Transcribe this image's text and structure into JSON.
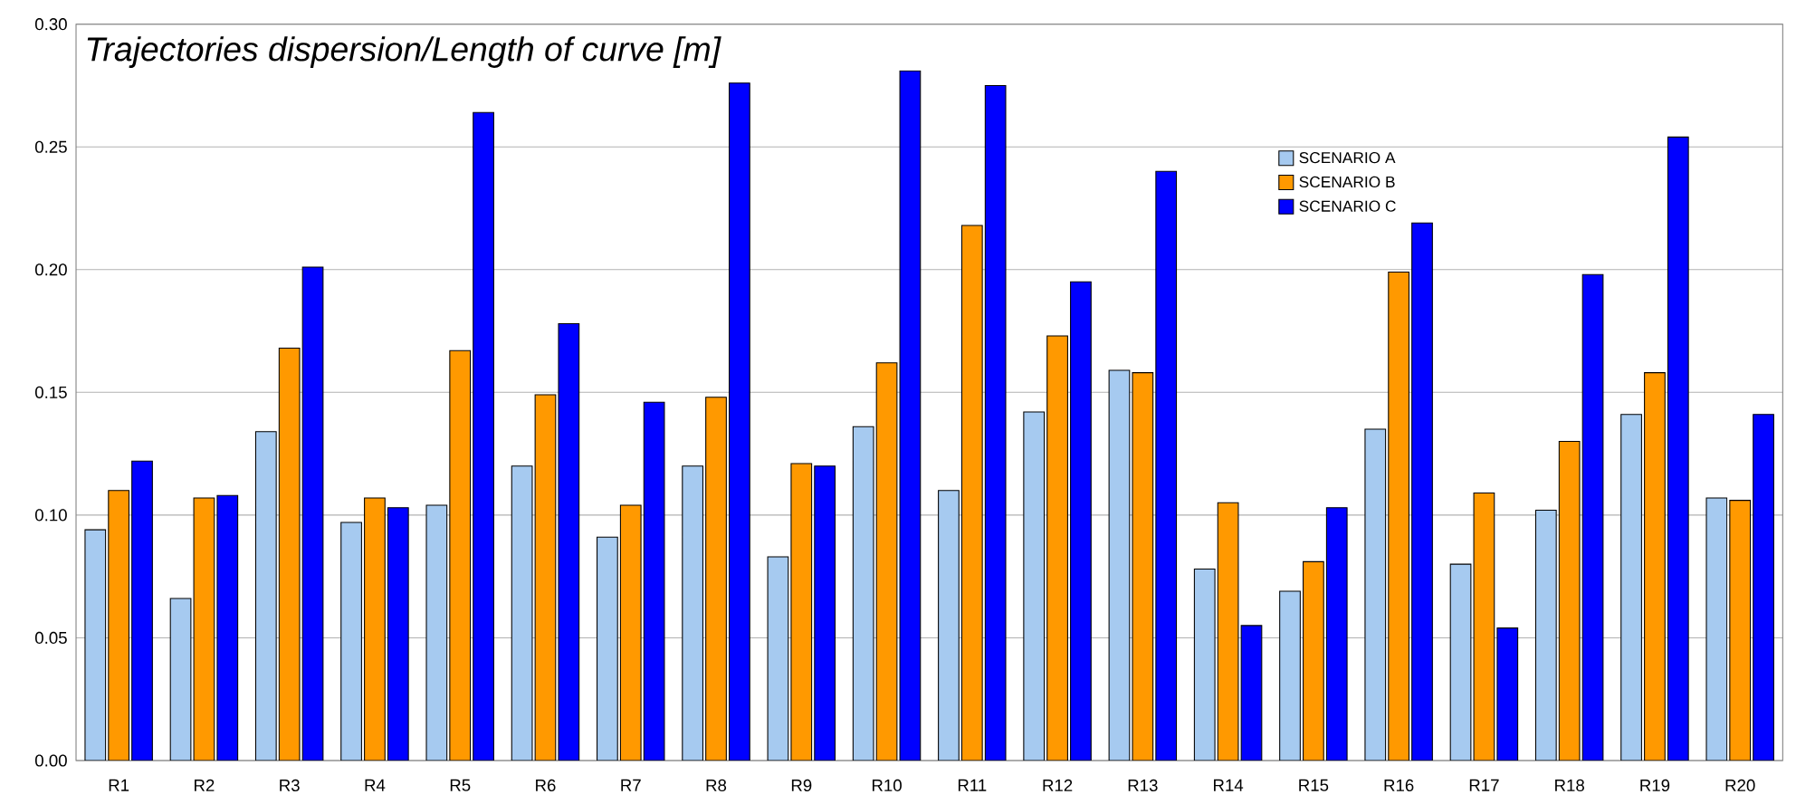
{
  "chart_data": {
    "type": "bar",
    "title": "Trajectories dispersion/Length of curve  [m]",
    "categories": [
      "R1",
      "R2",
      "R3",
      "R4",
      "R5",
      "R6",
      "R7",
      "R8",
      "R9",
      "R10",
      "R11",
      "R12",
      "R13",
      "R14",
      "R15",
      "R16",
      "R17",
      "R18",
      "R19",
      "R20"
    ],
    "series": [
      {
        "name": "SCENARIO A",
        "color": "#a6caf0",
        "values": [
          0.094,
          0.066,
          0.134,
          0.097,
          0.104,
          0.12,
          0.091,
          0.12,
          0.083,
          0.136,
          0.11,
          0.142,
          0.159,
          0.078,
          0.069,
          0.135,
          0.08,
          0.102,
          0.141,
          0.107
        ]
      },
      {
        "name": "SCENARIO B",
        "color": "#ff9900",
        "values": [
          0.11,
          0.107,
          0.168,
          0.107,
          0.167,
          0.149,
          0.104,
          0.148,
          0.121,
          0.162,
          0.218,
          0.173,
          0.158,
          0.105,
          0.081,
          0.199,
          0.109,
          0.13,
          0.158,
          0.106
        ]
      },
      {
        "name": "SCENARIO C",
        "color": "#0000ff",
        "values": [
          0.122,
          0.108,
          0.201,
          0.103,
          0.264,
          0.178,
          0.146,
          0.276,
          0.12,
          0.281,
          0.275,
          0.195,
          0.24,
          0.055,
          0.103,
          0.219,
          0.054,
          0.198,
          0.254,
          0.141
        ]
      }
    ],
    "ylim": [
      0,
      0.3
    ],
    "yticks": [
      {
        "value": 0,
        "label": "0.00"
      },
      {
        "value": 0.05,
        "label": "0.05"
      },
      {
        "value": 0.1,
        "label": "0.10"
      },
      {
        "value": 0.15,
        "label": "0.15"
      },
      {
        "value": 0.2,
        "label": "0.20"
      },
      {
        "value": 0.25,
        "label": "0.25"
      },
      {
        "value": 0.3,
        "label": "0.30"
      }
    ],
    "grid": "y",
    "legend": "top right"
  }
}
